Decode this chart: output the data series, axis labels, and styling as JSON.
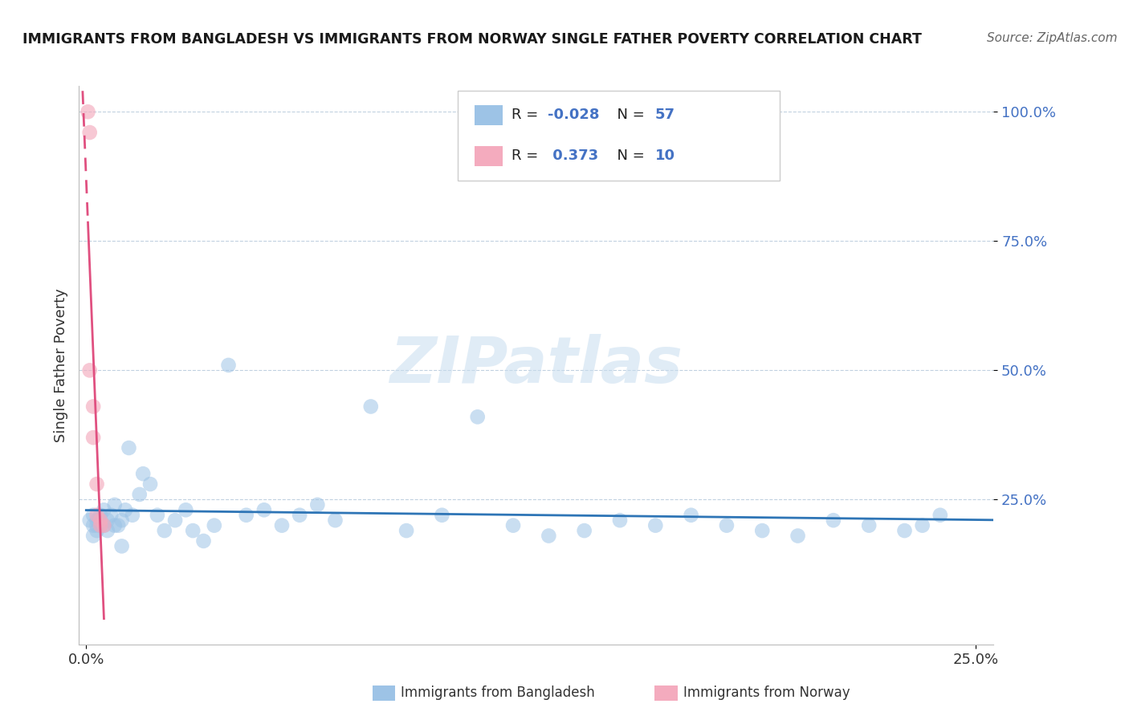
{
  "title": "IMMIGRANTS FROM BANGLADESH VS IMMIGRANTS FROM NORWAY SINGLE FATHER POVERTY CORRELATION CHART",
  "source": "Source: ZipAtlas.com",
  "ylabel": "Single Father Poverty",
  "xlim": [
    -0.002,
    0.255
  ],
  "ylim": [
    -0.03,
    1.05
  ],
  "R_bangladesh": -0.028,
  "N_bangladesh": 57,
  "R_norway": 0.373,
  "N_norway": 10,
  "color_bangladesh": "#9DC3E6",
  "color_norway": "#F4ABBE",
  "trendline_color_bangladesh": "#2E75B6",
  "trendline_color_norway": "#E05080",
  "grid_color": "#BBCCDD",
  "ytick_color": "#4472C4",
  "bangladesh_x": [
    0.001,
    0.002,
    0.002,
    0.003,
    0.003,
    0.004,
    0.004,
    0.005,
    0.005,
    0.006,
    0.007,
    0.008,
    0.009,
    0.01,
    0.011,
    0.012,
    0.013,
    0.015,
    0.016,
    0.018,
    0.02,
    0.022,
    0.025,
    0.028,
    0.03,
    0.033,
    0.036,
    0.04,
    0.045,
    0.05,
    0.055,
    0.06,
    0.065,
    0.07,
    0.08,
    0.09,
    0.1,
    0.11,
    0.12,
    0.13,
    0.14,
    0.15,
    0.16,
    0.17,
    0.18,
    0.19,
    0.2,
    0.21,
    0.22,
    0.23,
    0.235,
    0.24,
    0.003,
    0.006,
    0.008,
    0.01,
    0.002
  ],
  "bangladesh_y": [
    0.21,
    0.22,
    0.2,
    0.21,
    0.19,
    0.22,
    0.2,
    0.23,
    0.2,
    0.21,
    0.22,
    0.24,
    0.2,
    0.21,
    0.23,
    0.35,
    0.22,
    0.26,
    0.3,
    0.28,
    0.22,
    0.19,
    0.21,
    0.23,
    0.19,
    0.17,
    0.2,
    0.51,
    0.22,
    0.23,
    0.2,
    0.22,
    0.24,
    0.21,
    0.43,
    0.19,
    0.22,
    0.41,
    0.2,
    0.18,
    0.19,
    0.21,
    0.2,
    0.22,
    0.2,
    0.19,
    0.18,
    0.21,
    0.2,
    0.19,
    0.2,
    0.22,
    0.2,
    0.19,
    0.2,
    0.16,
    0.18
  ],
  "norway_x": [
    0.0005,
    0.001,
    0.001,
    0.002,
    0.002,
    0.003,
    0.003,
    0.004,
    0.004,
    0.005
  ],
  "norway_y": [
    1.0,
    0.96,
    0.5,
    0.43,
    0.37,
    0.28,
    0.22,
    0.21,
    0.2,
    0.2
  ]
}
